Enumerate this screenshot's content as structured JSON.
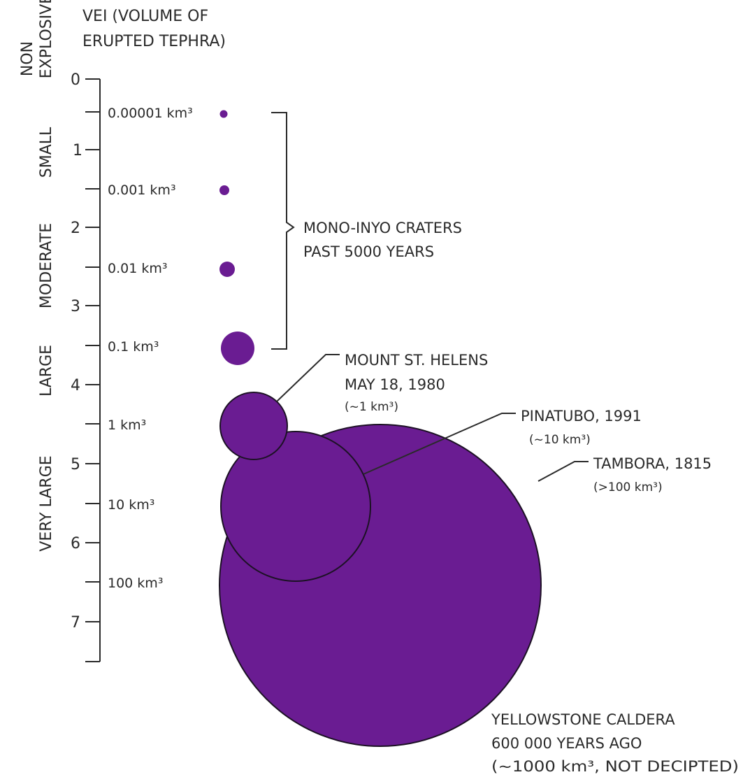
{
  "header": {
    "title_line1": "VEI (VOLUME OF",
    "title_line2": "ERUPTED TEPHRA)"
  },
  "categories": {
    "non": "NON",
    "explosive": "EXPLOSIVE",
    "small": "SMALL",
    "moderate": "MODERATE",
    "large": "LARGE",
    "very_large": "VERY LARGE"
  },
  "scale": {
    "ticks": [
      "0",
      "1",
      "2",
      "3",
      "4",
      "5",
      "6",
      "7"
    ],
    "volumes": [
      "0.00001 km³",
      "0.001 km³",
      "0.01 km³",
      "0.1 km³",
      "1 km³",
      "10 km³",
      "100 km³"
    ]
  },
  "mono_inyo": {
    "line1": "MONO-INYO CRATERS",
    "line2": "PAST 5000 YEARS"
  },
  "eruptions": {
    "st_helens": {
      "name": "MOUNT ST. HELENS",
      "date": "MAY 18, 1980",
      "volume": "(~1 km³)"
    },
    "pinatubo": {
      "name": "PINATUBO, 1991",
      "volume": "(~10 km³)"
    },
    "tambora": {
      "name": "TAMBORA, 1815",
      "volume": "(>100 km³)"
    },
    "yellowstone": {
      "name": "YELLOWSTONE CALDERA",
      "date": "600 000 YEARS AGO",
      "volume": "(~1000 km³, NOT DECIPTED)"
    }
  },
  "colors": {
    "bubble": "#6a1c92",
    "ink": "#2a2a2a"
  }
}
